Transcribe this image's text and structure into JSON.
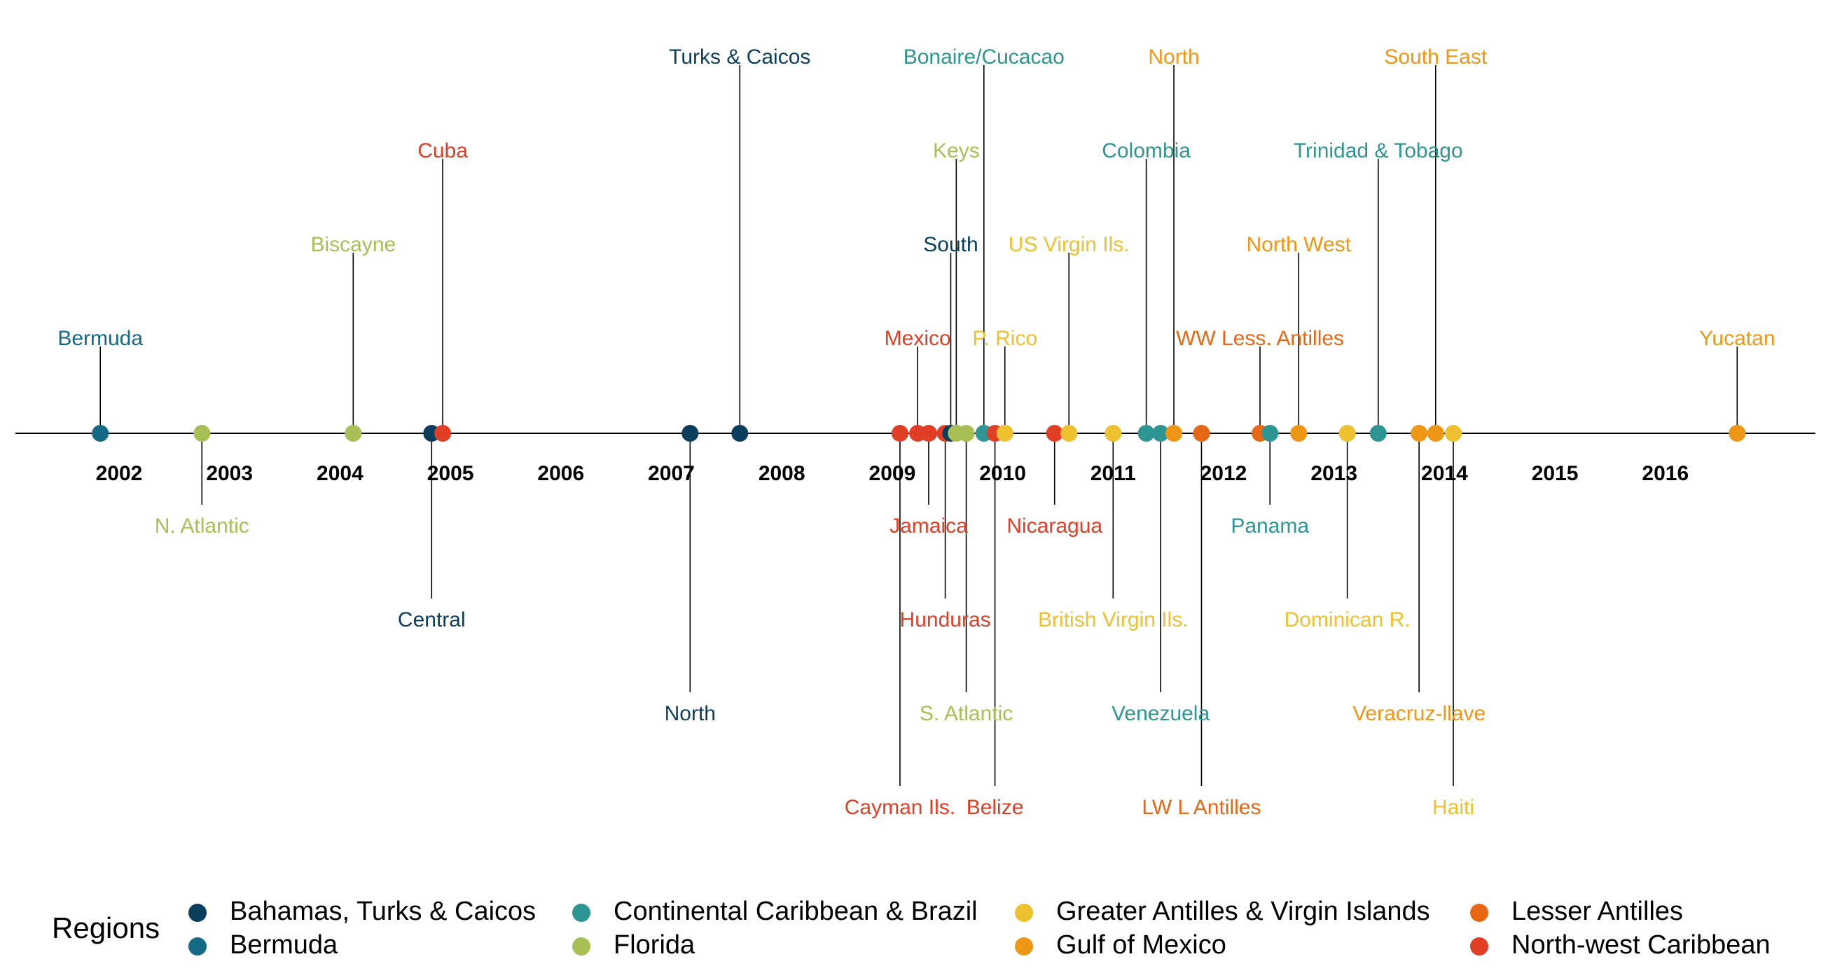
{
  "chart_data": {
    "type": "scatter",
    "title": "",
    "xlabel": "",
    "ylabel": "",
    "x_tick_labels": [
      "2002",
      "2003",
      "2004",
      "2005",
      "2006",
      "2007",
      "2008",
      "2009",
      "2010",
      "2011",
      "2012",
      "2013",
      "2014",
      "2015",
      "2016"
    ],
    "xlim": [
      2001.3,
      2017.6
    ],
    "level_range": [
      -4,
      4
    ],
    "grid": false,
    "legend": {
      "title": "Regions",
      "placement": "bottom",
      "entries": [
        {
          "name": "Bahamas, Turks & Caicos",
          "color": "#0b3d5c"
        },
        {
          "name": "Bermuda",
          "color": "#146a85"
        },
        {
          "name": "Continental Caribbean & Brazil",
          "color": "#2e9692"
        },
        {
          "name": "Florida",
          "color": "#a8bf56"
        },
        {
          "name": "Greater Antilles & Virgin Islands",
          "color": "#eec130"
        },
        {
          "name": "Gulf of Mexico",
          "color": "#ee9615"
        },
        {
          "name": "Lesser Antilles",
          "color": "#e66814"
        },
        {
          "name": "North-west Caribbean",
          "color": "#e03e25"
        }
      ]
    },
    "events": [
      {
        "label": "Bermuda",
        "x": 2001.83,
        "level": 1,
        "region": 1
      },
      {
        "label": "N. Atlantic",
        "x": 2002.75,
        "level": -1,
        "region": 3
      },
      {
        "label": "Biscayne",
        "x": 2004.12,
        "level": 2,
        "region": 3
      },
      {
        "label": "Central",
        "x": 2004.83,
        "level": -2,
        "region": 0
      },
      {
        "label": "Cuba",
        "x": 2004.93,
        "level": 3,
        "region": 7
      },
      {
        "label": "North",
        "x": 2007.17,
        "level": -3,
        "region": 0
      },
      {
        "label": "Turks & Caicos",
        "x": 2007.62,
        "level": 4,
        "region": 0
      },
      {
        "label": "Cayman Ils.",
        "x": 2009.07,
        "level": -4,
        "region": 7
      },
      {
        "label": "Mexico",
        "x": 2009.23,
        "level": 1,
        "region": 7
      },
      {
        "label": "Jamaica",
        "x": 2009.33,
        "level": -1,
        "region": 7
      },
      {
        "label": "Hunduras",
        "x": 2009.48,
        "level": -2,
        "region": 7
      },
      {
        "label": "South",
        "x": 2009.53,
        "level": 2,
        "region": 0
      },
      {
        "label": "Keys",
        "x": 2009.58,
        "level": 3,
        "region": 3
      },
      {
        "label": "S. Atlantic",
        "x": 2009.67,
        "level": -3,
        "region": 3
      },
      {
        "label": "Bonaire/Cucacao",
        "x": 2009.83,
        "level": 4,
        "region": 2
      },
      {
        "label": "Belize",
        "x": 2009.93,
        "level": -4,
        "region": 7
      },
      {
        "label": "P. Rico",
        "x": 2010.02,
        "level": 1,
        "region": 4
      },
      {
        "label": "Nicaragua",
        "x": 2010.47,
        "level": -1,
        "region": 7
      },
      {
        "label": "US Virgin Ils.",
        "x": 2010.6,
        "level": 2,
        "region": 4
      },
      {
        "label": "British Virgin Ils.",
        "x": 2011.0,
        "level": -2,
        "region": 4
      },
      {
        "label": "Colombia",
        "x": 2011.3,
        "level": 3,
        "region": 2
      },
      {
        "label": "Venezuela",
        "x": 2011.43,
        "level": -3,
        "region": 2
      },
      {
        "label": "North",
        "x": 2011.55,
        "level": 4,
        "region": 5
      },
      {
        "label": "LW L Antilles",
        "x": 2011.8,
        "level": -4,
        "region": 6
      },
      {
        "label": "WW Less. Antilles",
        "x": 2012.33,
        "level": 1,
        "region": 6
      },
      {
        "label": "Panama",
        "x": 2012.42,
        "level": -1,
        "region": 2
      },
      {
        "label": "North West",
        "x": 2012.68,
        "level": 2,
        "region": 5
      },
      {
        "label": "Dominican R.",
        "x": 2013.12,
        "level": -2,
        "region": 4
      },
      {
        "label": "Trinidad & Tobago",
        "x": 2013.4,
        "level": 3,
        "region": 2
      },
      {
        "label": "Veracruz-llave",
        "x": 2013.77,
        "level": -3,
        "region": 5
      },
      {
        "label": "South East",
        "x": 2013.92,
        "level": 4,
        "region": 5
      },
      {
        "label": "Haiti",
        "x": 2014.08,
        "level": -4,
        "region": 4
      },
      {
        "label": "Yucatan",
        "x": 2016.65,
        "level": 1,
        "region": 5
      }
    ]
  }
}
